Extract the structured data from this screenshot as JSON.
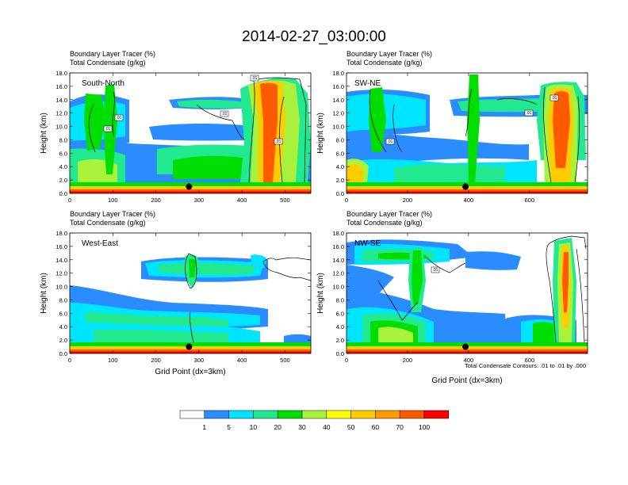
{
  "title": "2014-02-27_03:00:00",
  "chart_data": [
    {
      "type": "heatmap",
      "panel": "South-North",
      "header_line1": "Boundary Layer Tracer   (%)",
      "header_line2": "Total Condensate   (g/kg)",
      "ylabel": "Height (km)",
      "xlabel": "",
      "xlim": [
        0,
        560
      ],
      "ylim": [
        0,
        18
      ],
      "xticks": [
        "0",
        "100",
        "200",
        "300",
        "400",
        "500"
      ],
      "xtick_values": [
        0,
        100,
        200,
        300,
        400,
        500
      ],
      "yticks": [
        "0.0",
        "2.0",
        "4.0",
        "6.0",
        "8.0",
        "10.0",
        "12.0",
        "14.0",
        "16.0",
        "18.0"
      ],
      "marker_x": 277,
      "contour_labels": [
        ".01",
        ".01",
        ".01",
        ".01",
        ".01"
      ]
    },
    {
      "type": "heatmap",
      "panel": "SW-NE",
      "header_line1": "Boundary Layer Tracer   (%)",
      "header_line2": "Total Condensate   (g/kg)",
      "ylabel": "Height (km)",
      "xlabel": "",
      "xlim": [
        0,
        790
      ],
      "ylim": [
        0,
        18
      ],
      "xticks": [
        "0",
        "200",
        "400",
        "600"
      ],
      "xtick_values": [
        0,
        200,
        400,
        600
      ],
      "yticks": [
        "0.0",
        "2.0",
        "4.0",
        "6.0",
        "8.0",
        "10.0",
        "12.0",
        "14.0",
        "16.0",
        "18.0"
      ],
      "marker_x": 390,
      "contour_labels": [
        ".01",
        ".01",
        ".01"
      ]
    },
    {
      "type": "heatmap",
      "panel": "West-East",
      "header_line1": "Boundary Layer Tracer   (%)",
      "header_line2": "Total Condensate   (g/kg)",
      "ylabel": "Height (km)",
      "xlabel": "Grid Point (dx=3km)",
      "xlim": [
        0,
        560
      ],
      "ylim": [
        0,
        18
      ],
      "xticks": [
        "0",
        "100",
        "200",
        "300",
        "400",
        "500"
      ],
      "xtick_values": [
        0,
        100,
        200,
        300,
        400,
        500
      ],
      "yticks": [
        "0.0",
        "2.0",
        "4.0",
        "6.0",
        "8.0",
        "10.0",
        "12.0",
        "14.0",
        "16.0",
        "18.0"
      ],
      "marker_x": 277,
      "contour_labels": []
    },
    {
      "type": "heatmap",
      "panel": "NW-SE",
      "header_line1": "Boundary Layer Tracer   (%)",
      "header_line2": "Total Condensate   (g/kg)",
      "ylabel": "Height (km)",
      "xlabel": "Grid Point (dx=3km)",
      "xlim": [
        0,
        790
      ],
      "ylim": [
        0,
        18
      ],
      "xticks": [
        "0",
        "200",
        "400",
        "600"
      ],
      "xtick_values": [
        0,
        200,
        400,
        600
      ],
      "yticks": [
        "0.0",
        "2.0",
        "4.0",
        "6.0",
        "8.0",
        "10.0",
        "12.0",
        "14.0",
        "16.0",
        "18.0"
      ],
      "marker_x": 390,
      "contour_labels": [
        ".01"
      ]
    }
  ],
  "contour_note": "Total Condensate Contours: .01 to .01 by .000",
  "colorbar": {
    "labels": [
      "1",
      "5",
      "10",
      "20",
      "30",
      "40",
      "50",
      "60",
      "70",
      "100"
    ],
    "colors": [
      "#ffffff",
      "#2a8cff",
      "#00e5ff",
      "#22e88f",
      "#00dd00",
      "#a8f23c",
      "#ffff00",
      "#ffcc00",
      "#ff9900",
      "#ff5a00",
      "#ff0000"
    ]
  }
}
